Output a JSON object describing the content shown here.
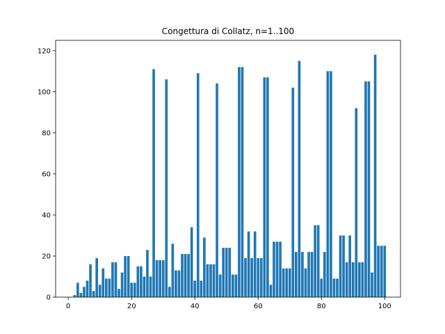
{
  "colors": {
    "bar": "#1f77b4",
    "axis": "#000000",
    "background": "#ffffff"
  },
  "chart_data": {
    "type": "bar",
    "title": "Congettura di Collatz, n=1..100",
    "xlabel": "",
    "ylabel": "",
    "xlim": [
      -4,
      105
    ],
    "ylim": [
      0,
      125
    ],
    "xticks": [
      0,
      20,
      40,
      60,
      80,
      100
    ],
    "yticks": [
      0,
      20,
      40,
      60,
      80,
      100,
      120
    ],
    "grid": false,
    "x": [
      1,
      2,
      3,
      4,
      5,
      6,
      7,
      8,
      9,
      10,
      11,
      12,
      13,
      14,
      15,
      16,
      17,
      18,
      19,
      20,
      21,
      22,
      23,
      24,
      25,
      26,
      27,
      28,
      29,
      30,
      31,
      32,
      33,
      34,
      35,
      36,
      37,
      38,
      39,
      40,
      41,
      42,
      43,
      44,
      45,
      46,
      47,
      48,
      49,
      50,
      51,
      52,
      53,
      54,
      55,
      56,
      57,
      58,
      59,
      60,
      61,
      62,
      63,
      64,
      65,
      66,
      67,
      68,
      69,
      70,
      71,
      72,
      73,
      74,
      75,
      76,
      77,
      78,
      79,
      80,
      81,
      82,
      83,
      84,
      85,
      86,
      87,
      88,
      89,
      90,
      91,
      92,
      93,
      94,
      95,
      96,
      97,
      98,
      99,
      100
    ],
    "values": [
      0,
      1,
      7,
      2,
      5,
      8,
      16,
      3,
      19,
      6,
      14,
      9,
      9,
      17,
      17,
      4,
      12,
      20,
      20,
      7,
      7,
      15,
      15,
      10,
      23,
      10,
      111,
      18,
      18,
      18,
      106,
      5,
      26,
      13,
      13,
      21,
      21,
      21,
      34,
      8,
      109,
      8,
      29,
      16,
      16,
      16,
      104,
      11,
      24,
      24,
      24,
      11,
      11,
      112,
      112,
      19,
      32,
      19,
      32,
      19,
      19,
      107,
      107,
      6,
      27,
      27,
      27,
      14,
      14,
      14,
      102,
      22,
      115,
      22,
      14,
      22,
      22,
      35,
      35,
      9,
      22,
      110,
      110,
      9,
      9,
      30,
      30,
      17,
      30,
      17,
      92,
      17,
      17,
      105,
      105,
      12,
      118,
      25,
      25,
      25
    ]
  }
}
